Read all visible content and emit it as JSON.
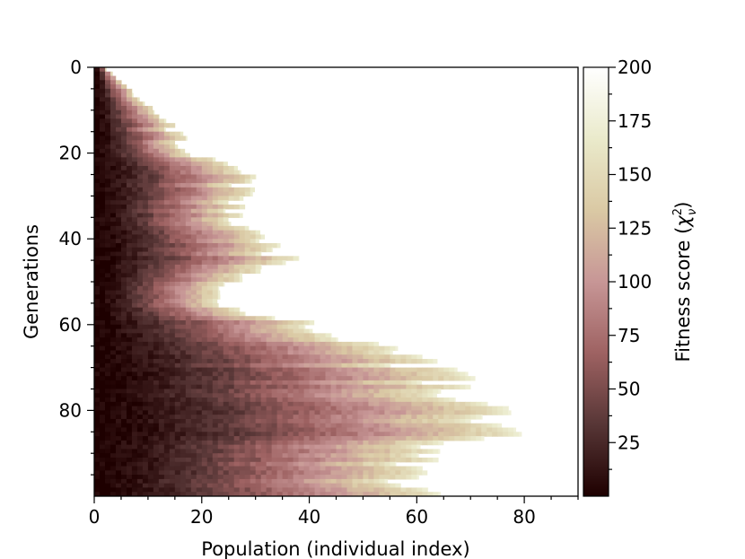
{
  "chart_data": {
    "type": "heatmap",
    "xlabel": "Population (individual index)",
    "ylabel": "Generations",
    "colorbar_label": "Fitness score",
    "colorbar_label_symbol": "χ",
    "colorbar_label_sup": "2",
    "colorbar_label_sub": "ν",
    "xlim": [
      0,
      90
    ],
    "ylim": [
      100,
      0
    ],
    "x_ticks": [
      0,
      20,
      40,
      60,
      80
    ],
    "y_ticks": [
      0,
      20,
      40,
      60,
      80
    ],
    "x_tick_labels": [
      "0",
      "20",
      "40",
      "60",
      "80"
    ],
    "y_tick_labels": [
      "0",
      "20",
      "40",
      "60",
      "80"
    ],
    "colorbar_range": [
      0,
      200
    ],
    "colorbar_ticks": [
      25,
      50,
      75,
      100,
      125,
      150,
      175,
      200
    ],
    "colorbar_tick_labels": [
      "25",
      "50",
      "75",
      "100",
      "125",
      "150",
      "175",
      "200"
    ],
    "colormap": "pink",
    "colormap_stops": [
      "#1e0000",
      "#573636",
      "#9e6262",
      "#c79696",
      "#dac9a4",
      "#eaeacb",
      "#ffffff"
    ],
    "background_above_max": "#ffffff",
    "population_extent_profile": {
      "generations": [
        0,
        5,
        10,
        15,
        20,
        25,
        30,
        35,
        40,
        45,
        50,
        55,
        60,
        65,
        70,
        75,
        80,
        85,
        90,
        95,
        100
      ],
      "max_individual": [
        2,
        6,
        11,
        15,
        18,
        28,
        28,
        26,
        33,
        35,
        24,
        22,
        40,
        51,
        62,
        68,
        73,
        77,
        60,
        58,
        62
      ]
    }
  }
}
